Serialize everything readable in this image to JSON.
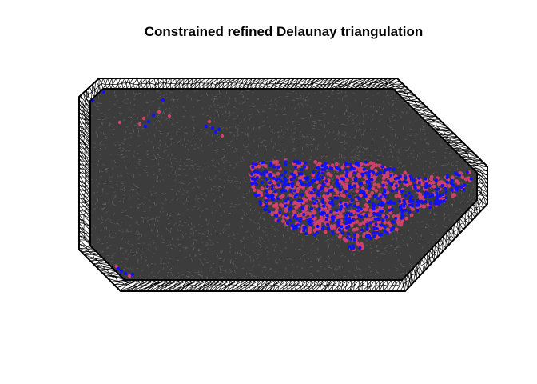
{
  "title": "Constrained refined Delaunay triangulation",
  "colors": {
    "background": "#ffffff",
    "mesh_fill": "#3c3c3c",
    "mesh_edge": "#000000",
    "interior_speckle": "#9a9a9a",
    "points_blue": "#1010ff",
    "points_red": "#d0406a"
  },
  "chart_data": {
    "type": "scatter",
    "title": "Constrained refined Delaunay triangulation",
    "xlabel": "",
    "ylabel": "",
    "axes_shown": false,
    "series": [
      {
        "color": "#1010ff"
      },
      {
        "color": "#d0406a"
      }
    ]
  }
}
